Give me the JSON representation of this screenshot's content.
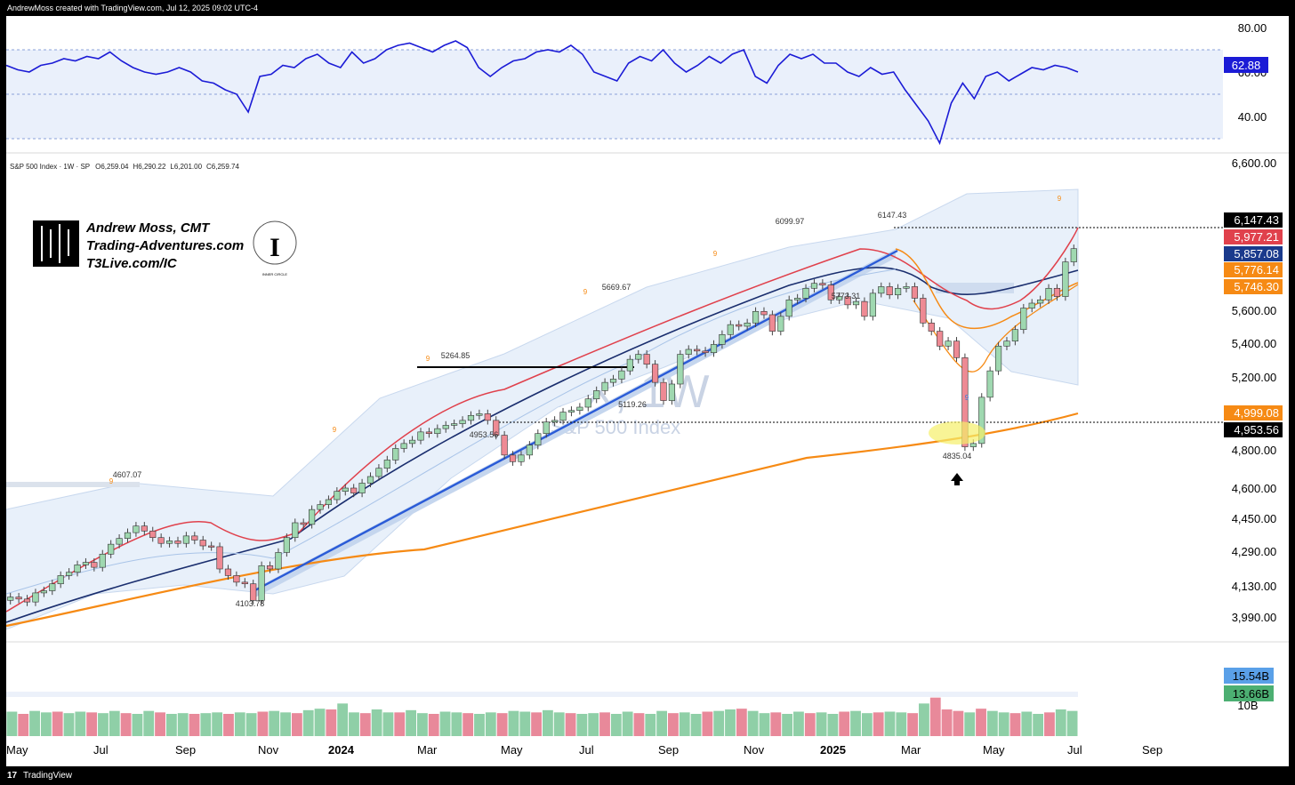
{
  "header": {
    "created_by": "AndrewMoss created with TradingView.com, Jul 12, 2025 09:02 UTC-4"
  },
  "footer": {
    "logo": "17",
    "brand": "TradingView"
  },
  "symbol": {
    "title": "S&P 500 Index · 1W · SP",
    "open_label": "O",
    "open": "6,259.04",
    "high_label": "H",
    "high": "6,290.22",
    "low_label": "L",
    "low": "6,201.00",
    "close_label": "C",
    "close": "6,259.74",
    "watermark_ticker": "SPX, 1W",
    "watermark_name": "S&P 500 Index"
  },
  "branding": {
    "line1": "Andrew Moss, CMT",
    "line2": "Trading-Adventures.com",
    "line3": "T3Live.com/IC",
    "logo_caption": "INNER CIRCLE"
  },
  "rsi": {
    "axis_labels": [
      "80.00",
      "60.00",
      "40.00"
    ],
    "current": "62.88",
    "color": "#1b1bd6"
  },
  "price_axis": [
    "6,600.00",
    "5,600.00",
    "5,400.00",
    "5,200.00",
    "4,800.00",
    "4,600.00",
    "4,450.00",
    "4,290.00",
    "4,130.00",
    "3,990.00"
  ],
  "price_tags": [
    {
      "label": "6,147.43",
      "bg": "#000000"
    },
    {
      "label": "5,977.21",
      "bg": "#e0414c"
    },
    {
      "label": "5,857.08",
      "bg": "#1a3a8c"
    },
    {
      "label": "5,776.14",
      "bg": "#f68a14"
    },
    {
      "label": "5,746.30",
      "bg": "#f68a14"
    },
    {
      "label": "4,999.08",
      "bg": "#f68a14"
    },
    {
      "label": "4,953.56",
      "bg": "#000000"
    }
  ],
  "volume_tags": [
    {
      "label": "15.54B",
      "bg": "#5aa0e8"
    },
    {
      "label": "13.66B",
      "bg": "#4caf72"
    }
  ],
  "volume_axis": [
    "10B"
  ],
  "annotations": {
    "p4103": "4103.78",
    "p4607": "4607.07",
    "p5264": "5264.85",
    "p4953": "4953.56",
    "p5669": "5669.67",
    "p5119": "5119.26",
    "p6099": "6099.97",
    "p5773": "5773.31",
    "p6147": "6147.43",
    "p4835": "4835.04",
    "nine": "9"
  },
  "x_axis": [
    "May",
    "Jul",
    "Sep",
    "Nov",
    "2024",
    "Mar",
    "May",
    "Jul",
    "Sep",
    "Nov",
    "2025",
    "Mar",
    "May",
    "Jul",
    "Sep"
  ],
  "chart_data": {
    "type": "candlestick",
    "title": "S&P 500 Index · 1W · SP",
    "timeframe": "1W",
    "x_range": [
      "May 2023",
      "Sep 2025"
    ],
    "y_range": [
      3900,
      6700
    ],
    "key_levels": {
      "resistance": 6147.43,
      "support": 4953.56,
      "sma200": 4999.08,
      "sma_red": 5977.21,
      "sma_navy": 5857.08,
      "sma_orange_1": 5776.14,
      "sma_orange_2": 5746.3
    },
    "swing_points": [
      {
        "date": "Jul 2023",
        "value": 4607.07,
        "kind": "high"
      },
      {
        "date": "Oct 2023",
        "value": 4103.78,
        "kind": "low"
      },
      {
        "date": "Mar 2024",
        "value": 5264.85,
        "kind": "high"
      },
      {
        "date": "Apr 2024",
        "value": 4953.56,
        "kind": "low"
      },
      {
        "date": "Jul 2024",
        "value": 5669.67,
        "kind": "high"
      },
      {
        "date": "Aug 2024",
        "value": 5119.26,
        "kind": "low"
      },
      {
        "date": "Dec 2024",
        "value": 6099.97,
        "kind": "high"
      },
      {
        "date": "Jan 2025",
        "value": 5773.31,
        "kind": "low"
      },
      {
        "date": "Feb 2025",
        "value": 6147.43,
        "kind": "high"
      },
      {
        "date": "Apr 2025",
        "value": 4835.04,
        "kind": "low"
      }
    ],
    "closes": [
      4150,
      4138,
      4120,
      4175,
      4188,
      4230,
      4280,
      4300,
      4345,
      4360,
      4330,
      4410,
      4470,
      4505,
      4540,
      4580,
      4550,
      4510,
      4475,
      4490,
      4475,
      4520,
      4495,
      4460,
      4455,
      4320,
      4280,
      4240,
      4230,
      4130,
      4340,
      4320,
      4420,
      4510,
      4600,
      4590,
      4680,
      4710,
      4740,
      4790,
      4810,
      4780,
      4840,
      4880,
      4930,
      4980,
      5050,
      5080,
      5100,
      5150,
      5140,
      5170,
      5190,
      5200,
      5220,
      5250,
      5260,
      5220,
      5130,
      5010,
      4970,
      5010,
      5070,
      5140,
      5210,
      5220,
      5270,
      5280,
      5300,
      5350,
      5400,
      5450,
      5470,
      5520,
      5590,
      5620,
      5560,
      5450,
      5340,
      5440,
      5620,
      5650,
      5640,
      5630,
      5680,
      5740,
      5800,
      5790,
      5810,
      5880,
      5860,
      5760,
      5850,
      5950,
      5960,
      6020,
      6050,
      6040,
      5950,
      5970,
      5920,
      5940,
      5850,
      5990,
      6030,
      5980,
      6020,
      6030,
      5960,
      5810,
      5760,
      5670,
      5700,
      5600,
      5060,
      5080,
      5360,
      5520,
      5670,
      5700,
      5770,
      5900,
      5930,
      5950,
      6020,
      5970,
      6180,
      6260
    ],
    "rsi_series": [
      63,
      61,
      60,
      63,
      64,
      66,
      65,
      67,
      66,
      69,
      65,
      62,
      60,
      59,
      60,
      62,
      60,
      56,
      55,
      52,
      50,
      42,
      58,
      59,
      63,
      62,
      66,
      68,
      64,
      62,
      69,
      64,
      66,
      70,
      72,
      73,
      71,
      69,
      72,
      74,
      71,
      62,
      58,
      62,
      65,
      66,
      69,
      70,
      69,
      72,
      68,
      60,
      58,
      56,
      64,
      67,
      65,
      70,
      64,
      60,
      63,
      67,
      64,
      68,
      70,
      58,
      55,
      63,
      68,
      66,
      68,
      64,
      64,
      60,
      58,
      62,
      59,
      60,
      52,
      45,
      38,
      28,
      46,
      55,
      48,
      58,
      60,
      56,
      59,
      62,
      61,
      63,
      62,
      60
    ],
    "volume_series": [
      3.3,
      3.0,
      3.4,
      3.2,
      3.3,
      3.1,
      3.3,
      3.2,
      3.1,
      3.4,
      3.1,
      3.0,
      3.4,
      3.2,
      3.0,
      3.1,
      3.0,
      3.1,
      3.2,
      3.0,
      3.2,
      3.1,
      3.3,
      3.4,
      3.2,
      3.1,
      3.5,
      3.7,
      3.6,
      4.4,
      3.2,
      3.1,
      3.6,
      3.2,
      3.2,
      3.5,
      3.1,
      3.0,
      3.3,
      3.2,
      3.1,
      3.0,
      3.2,
      3.1,
      3.4,
      3.3,
      3.2,
      3.5,
      3.2,
      3.1,
      3.0,
      3.1,
      3.2,
      3.0,
      3.3,
      3.1,
      3.0,
      3.4,
      3.1,
      3.2,
      3.0,
      3.3,
      3.4,
      3.6,
      3.7,
      3.4,
      3.1,
      3.2,
      3.0,
      3.3,
      3.1,
      3.2,
      3.0,
      3.3,
      3.4,
      3.1,
      3.2,
      3.3,
      3.2,
      3.1,
      4.4,
      5.2,
      3.6,
      3.4,
      3.2,
      3.7,
      3.4,
      3.2,
      3.1,
      3.3,
      3.0,
      3.2,
      3.6,
      3.4
    ],
    "volume_range": [
      0,
      18
    ]
  }
}
